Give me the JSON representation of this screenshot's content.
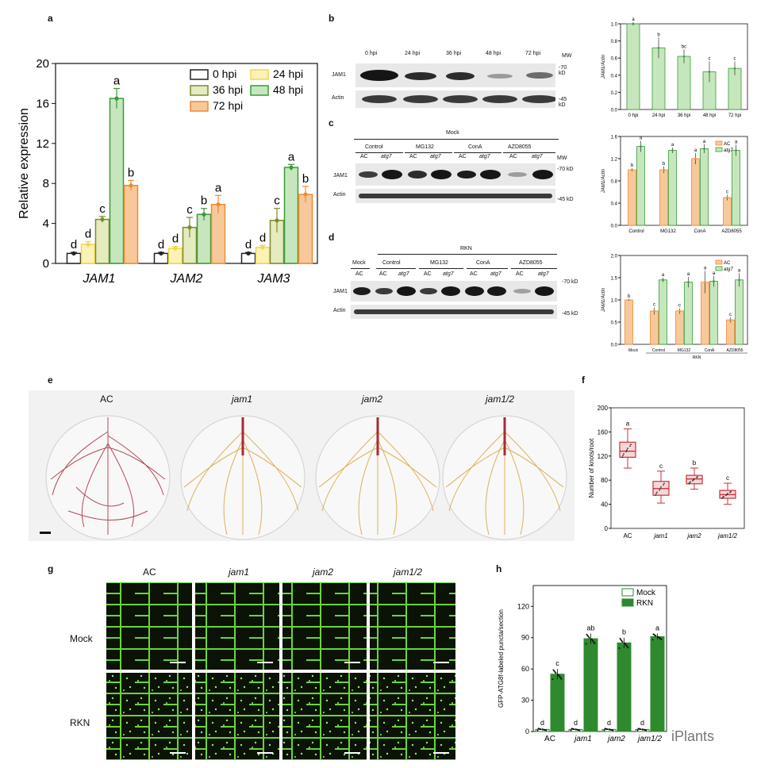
{
  "panels": {
    "a": "a",
    "b": "b",
    "c": "c",
    "d": "d",
    "e": "e",
    "f": "f",
    "g": "g",
    "h": "h"
  },
  "colors": {
    "black": "#222222",
    "yellow": "#f0d84a",
    "olive": "#7f8a2c",
    "green": "#3a9a3a",
    "orange": "#f08a30",
    "greenFill": "#c6e7bd",
    "orangeFill": "#f7c89b",
    "darkGreen": "#2f8a2f",
    "red": "#c8323a"
  },
  "blots": {
    "b": {
      "lanes": [
        "0 hpi",
        "24 hpi",
        "36 hpi",
        "48 hpi",
        "72 hpi"
      ],
      "rows": [
        "JAM1",
        "Actin"
      ],
      "mw_title": "MW",
      "mw": [
        "-70 kD",
        "-45 kD"
      ]
    },
    "c": {
      "group": "Mock",
      "treatments": [
        "Control",
        "MG132",
        "ConA",
        "AZD8055"
      ],
      "genotypes": [
        "AC",
        "atg7",
        "AC",
        "atg7",
        "AC",
        "atg7",
        "AC",
        "atg7"
      ],
      "rows": [
        "JAM1",
        "Actin"
      ],
      "mw_title": "MW",
      "mw": [
        "-70 kD",
        "-45 kD"
      ]
    },
    "d": {
      "group": "RKN",
      "mock": "Mock",
      "mock_geno": "AC",
      "treatments": [
        "Control",
        "MG132",
        "ConA",
        "AZD8055"
      ],
      "genotypes": [
        "AC",
        "atg7",
        "AC",
        "atg7",
        "AC",
        "atg7",
        "AC",
        "atg7"
      ],
      "rows": [
        "JAM1",
        "Actin"
      ],
      "mw": [
        "-70 kD",
        "-45 kD"
      ]
    }
  },
  "photos": {
    "e": {
      "labels": [
        "AC",
        "jam1",
        "jam2",
        "jam1/2"
      ]
    },
    "g": {
      "cols": [
        "AC",
        "jam1",
        "jam2",
        "jam1/2"
      ],
      "rows": [
        "Mock",
        "RKN"
      ]
    }
  },
  "watermark": "iPlants",
  "chart_data": [
    {
      "id": "a",
      "type": "bar",
      "title": "",
      "xlabel": "",
      "ylabel": "Relative expression",
      "ylim": [
        0,
        20
      ],
      "yticks": [
        0,
        4,
        8,
        12,
        16,
        20
      ],
      "categories": [
        "JAM1",
        "JAM2",
        "JAM3"
      ],
      "legend": [
        "0 hpi",
        "24 hpi",
        "36 hpi",
        "48 hpi",
        "72 hpi"
      ],
      "series": [
        {
          "name": "0 hpi",
          "values": [
            1.0,
            1.0,
            1.0
          ],
          "errors": [
            0.1,
            0.1,
            0.1
          ],
          "letters": [
            "d",
            "d",
            "d"
          ]
        },
        {
          "name": "24 hpi",
          "values": [
            1.9,
            1.5,
            1.6
          ],
          "errors": [
            0.3,
            0.2,
            0.2
          ],
          "letters": [
            "d",
            "d",
            "d"
          ]
        },
        {
          "name": "36 hpi",
          "values": [
            4.4,
            3.6,
            4.3
          ],
          "errors": [
            0.3,
            1.0,
            1.2
          ],
          "letters": [
            "c",
            "c",
            "c"
          ]
        },
        {
          "name": "48 hpi",
          "values": [
            16.5,
            4.9,
            9.6
          ],
          "errors": [
            1.0,
            0.6,
            0.3
          ],
          "letters": [
            "a",
            "b",
            "a"
          ]
        },
        {
          "name": "72 hpi",
          "values": [
            7.8,
            5.9,
            6.9
          ],
          "errors": [
            0.5,
            0.9,
            0.8
          ],
          "letters": [
            "b",
            "a",
            "b"
          ]
        }
      ]
    },
    {
      "id": "b",
      "type": "bar",
      "ylabel": "JAM1/Actin",
      "ylim": [
        0,
        1.0
      ],
      "yticks": [
        "0.0",
        "0.2",
        "0.4",
        "0.6",
        "0.8",
        "1.0"
      ],
      "categories": [
        "0 hpi",
        "24 hpi",
        "36 hpi",
        "48 hpi",
        "72 hpi"
      ],
      "values": [
        1.0,
        0.72,
        0.62,
        0.44,
        0.48
      ],
      "errors": [
        0.02,
        0.12,
        0.08,
        0.12,
        0.08
      ],
      "letters": [
        "a",
        "b",
        "bc",
        "c",
        "c"
      ]
    },
    {
      "id": "c",
      "type": "bar",
      "ylabel": "JAM1/Actin",
      "ylim": [
        0,
        1.6
      ],
      "yticks": [
        "0.0",
        "0.4",
        "0.8",
        "1.2",
        "1.6"
      ],
      "categories": [
        "Control",
        "MG132",
        "ConA",
        "AZD8055"
      ],
      "legend": [
        "AC",
        "atg7"
      ],
      "series": [
        {
          "name": "AC",
          "values": [
            1.0,
            1.0,
            1.2,
            0.5
          ],
          "errors": [
            0.03,
            0.06,
            0.1,
            0.05
          ],
          "letters": [
            "b",
            "b",
            "a",
            "c"
          ]
        },
        {
          "name": "atg7",
          "values": [
            1.42,
            1.35,
            1.38,
            1.35
          ],
          "errors": [
            0.1,
            0.05,
            0.08,
            0.1
          ],
          "letters": [
            "a",
            "a",
            "a",
            "a"
          ]
        }
      ]
    },
    {
      "id": "d",
      "type": "bar",
      "ylabel": "JAM1/Actin",
      "ylim": [
        0,
        2.0
      ],
      "yticks": [
        "0.0",
        "0.5",
        "1.0",
        "1.5",
        "2.0"
      ],
      "categories": [
        "Mock",
        "Control",
        "MG132",
        "ConA",
        "AZD8055"
      ],
      "group_label": "RKN",
      "legend": [
        "AC",
        "atg7"
      ],
      "series": [
        {
          "name": "AC",
          "values": [
            1.0,
            0.75,
            0.75,
            1.4,
            0.55
          ],
          "errors": [
            0.02,
            0.08,
            0.06,
            0.25,
            0.06
          ],
          "letters": [
            "b",
            "c",
            "c",
            "a",
            "c"
          ]
        },
        {
          "name": "atg7",
          "values": [
            null,
            1.45,
            1.4,
            1.42,
            1.45
          ],
          "errors": [
            0,
            0.05,
            0.12,
            0.12,
            0.15
          ],
          "letters": [
            "",
            "a",
            "a",
            "a",
            "a"
          ]
        }
      ]
    },
    {
      "id": "f",
      "type": "box",
      "ylabel": "Number of knots/root",
      "ylim": [
        0,
        200
      ],
      "yticks": [
        0,
        40,
        80,
        120,
        160,
        200
      ],
      "categories": [
        "AC",
        "jam1",
        "jam2",
        "jam1/2"
      ],
      "boxes": [
        {
          "min": 100,
          "q1": 118,
          "median": 128,
          "q3": 143,
          "max": 165,
          "letter": "a"
        },
        {
          "min": 42,
          "q1": 55,
          "median": 66,
          "q3": 78,
          "max": 95,
          "letter": "c"
        },
        {
          "min": 65,
          "q1": 74,
          "median": 82,
          "q3": 88,
          "max": 100,
          "letter": "b"
        },
        {
          "min": 40,
          "q1": 50,
          "median": 56,
          "q3": 63,
          "max": 75,
          "letter": "c"
        }
      ]
    },
    {
      "id": "h",
      "type": "bar",
      "ylabel": "GFP-ATG8f-labeled puncta/section",
      "ylim": [
        0,
        140
      ],
      "yticks": [
        0,
        30,
        60,
        90,
        120
      ],
      "categories": [
        "AC",
        "jam1",
        "jam2",
        "jam1/2"
      ],
      "legend": [
        "Mock",
        "RKN"
      ],
      "series": [
        {
          "name": "Mock",
          "values": [
            2,
            2,
            2,
            2
          ],
          "errors": [
            1,
            1,
            1,
            1
          ],
          "letters": [
            "d",
            "d",
            "d",
            "d"
          ]
        },
        {
          "name": "RKN",
          "values": [
            55,
            89,
            85,
            91
          ],
          "errors": [
            5,
            5,
            5,
            3
          ],
          "letters": [
            "c",
            "ab",
            "b",
            "a"
          ]
        }
      ]
    }
  ]
}
